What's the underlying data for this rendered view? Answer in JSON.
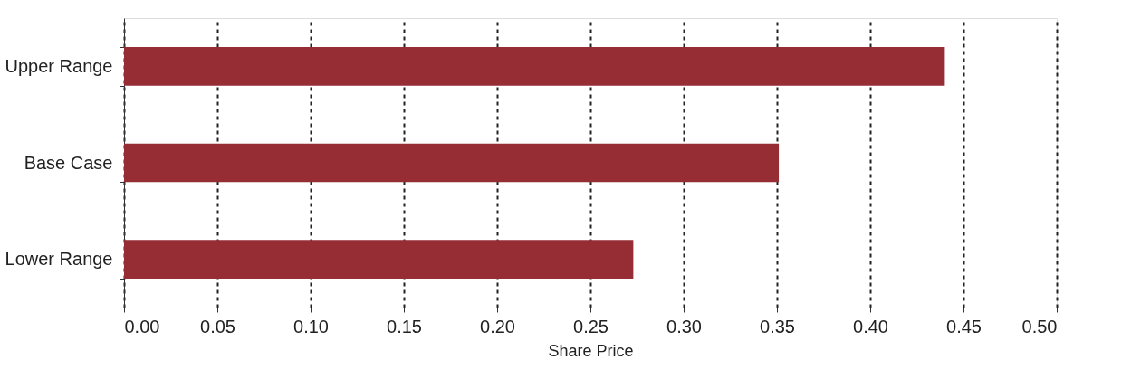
{
  "chart_data": {
    "type": "bar",
    "orientation": "horizontal",
    "xlabel": "Share Price",
    "categories": [
      "Upper Range",
      "Base Case",
      "Lower Range"
    ],
    "values": [
      0.44,
      0.351,
      0.273
    ],
    "color": "#962d35",
    "xlim": [
      0,
      0.5
    ],
    "xticks": [
      {
        "value": 0,
        "label": "0.00"
      },
      {
        "value": 0.05,
        "label": "0.05"
      },
      {
        "value": 0.1,
        "label": "0.10"
      },
      {
        "value": 0.15,
        "label": "0.15"
      },
      {
        "value": 0.2,
        "label": "0.20"
      },
      {
        "value": 0.25,
        "label": "0.25"
      },
      {
        "value": 0.3,
        "label": "0.30"
      },
      {
        "value": 0.35,
        "label": "0.35"
      },
      {
        "value": 0.4,
        "label": "0.40"
      },
      {
        "value": 0.45,
        "label": "0.45"
      },
      {
        "value": 0.5,
        "label": "0.50"
      }
    ],
    "grid": "x",
    "line_style": "dashed"
  }
}
